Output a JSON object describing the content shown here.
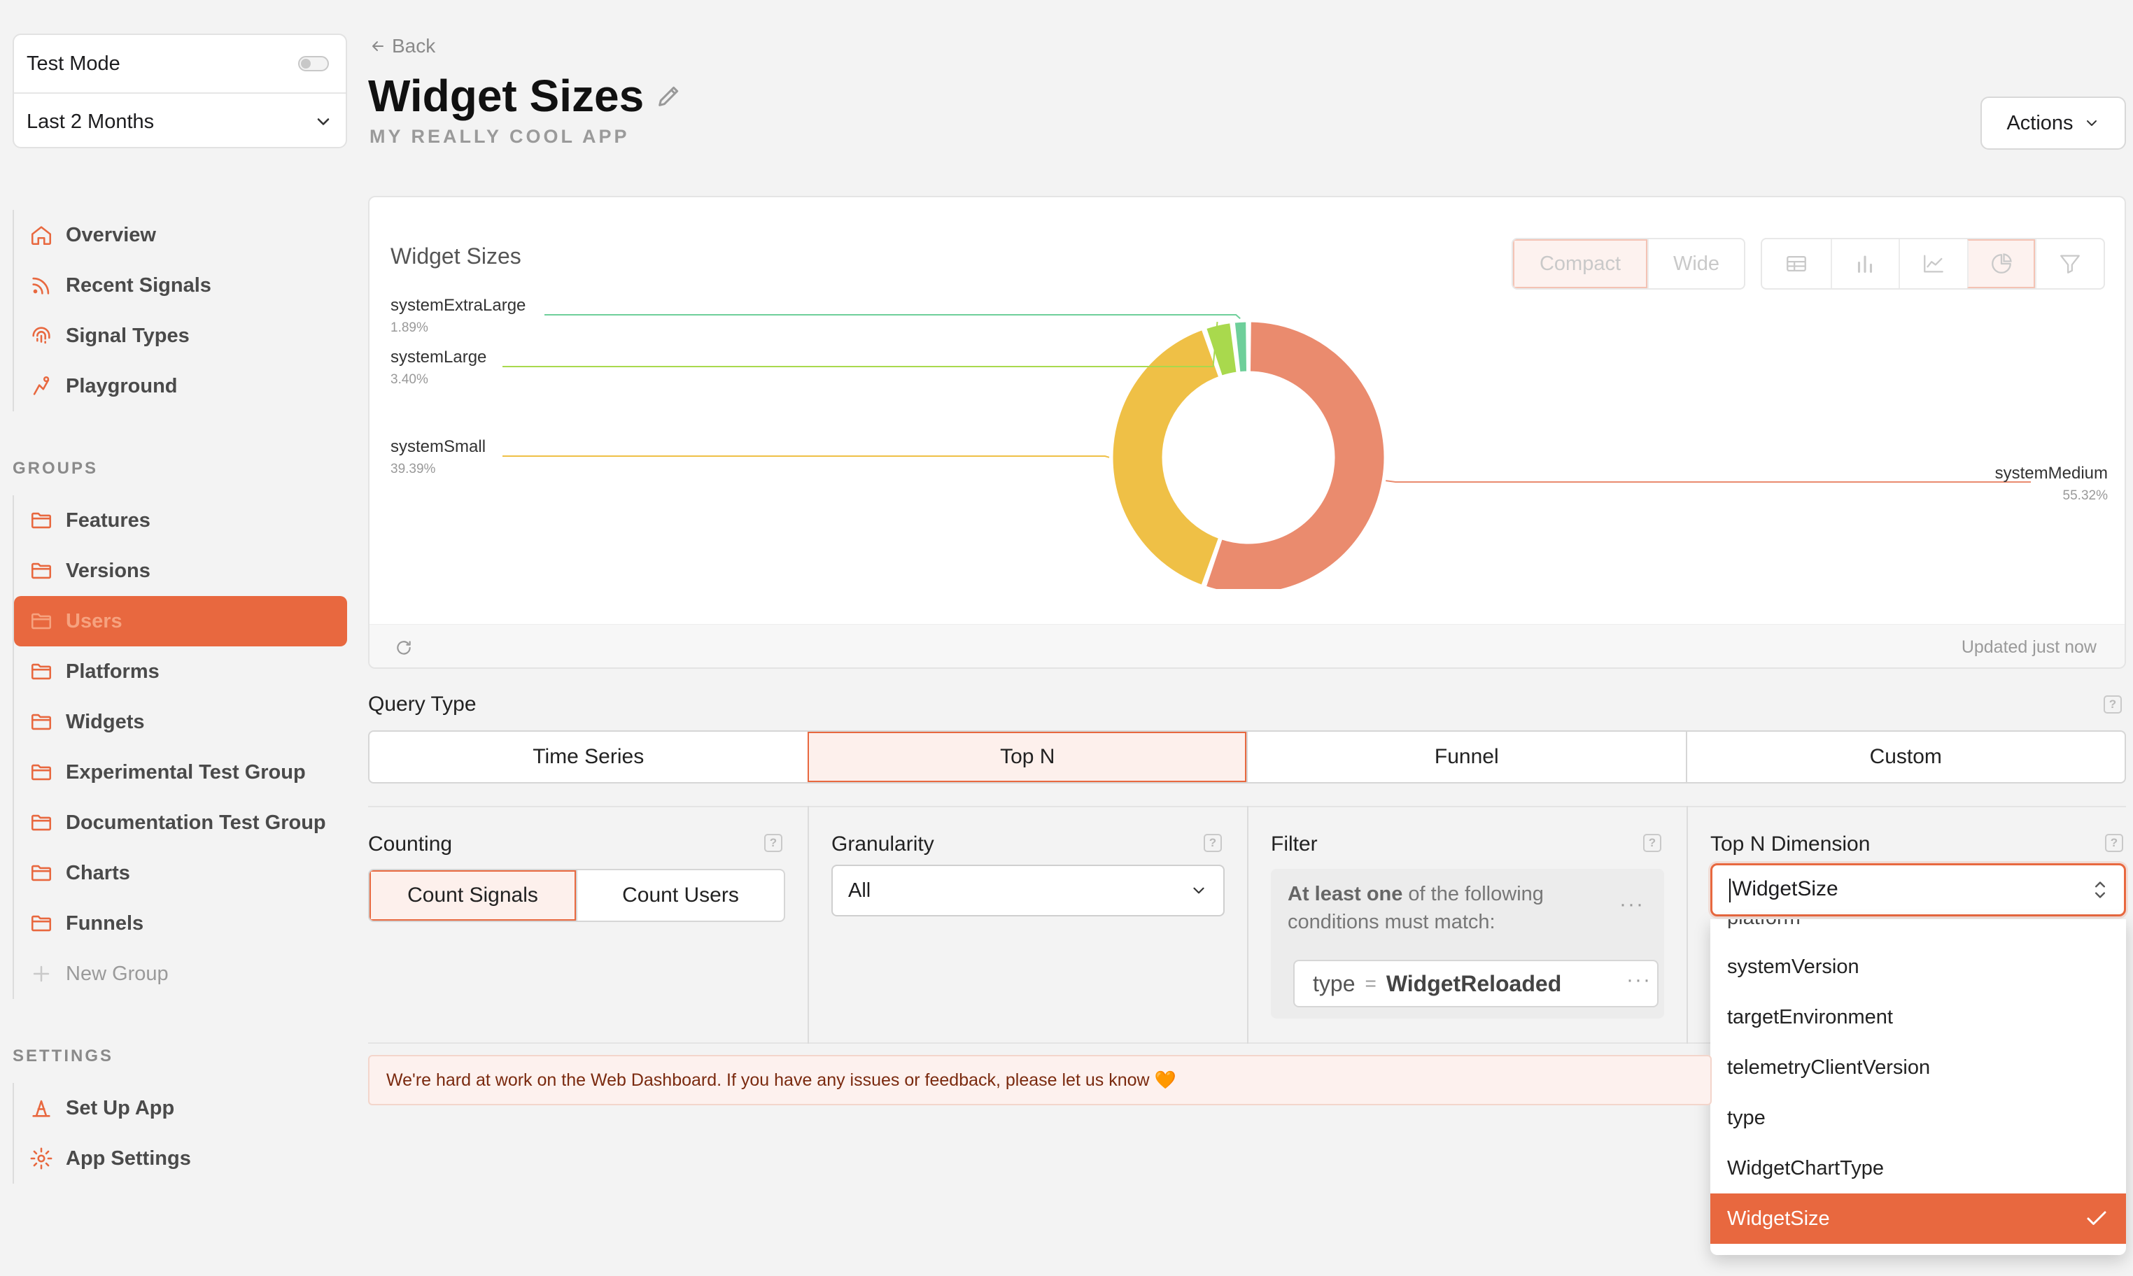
{
  "sidebar": {
    "test_mode_label": "Test Mode",
    "test_mode_on": false,
    "time_range": "Last 2 Months",
    "nav": [
      {
        "label": "Overview",
        "icon": "home-icon"
      },
      {
        "label": "Recent Signals",
        "icon": "signal-icon"
      },
      {
        "label": "Signal Types",
        "icon": "fingerprint-icon"
      },
      {
        "label": "Playground",
        "icon": "playground-icon"
      }
    ],
    "groups_label": "GROUPS",
    "groups": [
      {
        "label": "Features",
        "active": false
      },
      {
        "label": "Versions",
        "active": false
      },
      {
        "label": "Users",
        "active": true
      },
      {
        "label": "Platforms",
        "active": false
      },
      {
        "label": "Widgets",
        "active": false
      },
      {
        "label": "Experimental Test Group",
        "active": false
      },
      {
        "label": "Documentation Test Group",
        "active": false
      },
      {
        "label": "Charts",
        "active": false
      },
      {
        "label": "Funnels",
        "active": false
      }
    ],
    "new_group_label": "New Group",
    "settings_label": "SETTINGS",
    "settings": [
      {
        "label": "Set Up App",
        "icon": "wizard-icon"
      },
      {
        "label": "App Settings",
        "icon": "gear-icon"
      }
    ]
  },
  "header": {
    "back_label": "Back",
    "title": "Widget Sizes",
    "subtitle": "MY REALLY COOL APP",
    "actions_label": "Actions"
  },
  "chart_card": {
    "title": "Widget Sizes",
    "layout_options": [
      "Compact",
      "Wide"
    ],
    "selected_layout": "Compact",
    "chart_type_icons": [
      "table-icon",
      "bar-chart-icon",
      "line-chart-icon",
      "pie-chart-icon",
      "funnel-icon"
    ],
    "selected_chart_type": "pie-chart-icon",
    "updated_label": "Updated just now"
  },
  "chart_data": {
    "type": "pie",
    "donut": true,
    "title": "Widget Sizes",
    "slices": [
      {
        "label": "systemMedium",
        "value": 55.32,
        "display": "55.32%",
        "color": "#ea8b6e"
      },
      {
        "label": "systemSmall",
        "value": 39.39,
        "display": "39.39%",
        "color": "#efc046"
      },
      {
        "label": "systemLarge",
        "value": 3.4,
        "display": "3.40%",
        "color": "#a9d94d"
      },
      {
        "label": "systemExtraLarge",
        "value": 1.89,
        "display": "1.89%",
        "color": "#6ecf9a"
      }
    ]
  },
  "query": {
    "type_label": "Query Type",
    "types": [
      "Time Series",
      "Top N",
      "Funnel",
      "Custom"
    ],
    "selected_type": "Top N",
    "counting_label": "Counting",
    "counting_options": [
      "Count Signals",
      "Count Users"
    ],
    "selected_counting": "Count Signals",
    "granularity_label": "Granularity",
    "granularity_value": "All",
    "filter_label": "Filter",
    "filter_lead_bold": "At least one",
    "filter_lead_rest": " of the following conditions must match:",
    "condition_key": "type",
    "condition_op": "=",
    "condition_value": "WidgetReloaded",
    "topn_label": "Top N Dimension",
    "topn_value": "WidgetSize",
    "dropdown_partial": "platform",
    "dropdown_options": [
      "systemVersion",
      "targetEnvironment",
      "telemetryClientVersion",
      "type",
      "WidgetChartType",
      "WidgetSize"
    ],
    "dropdown_selected": "WidgetSize"
  },
  "banner": {
    "text": "We're hard at work on the Web Dashboard. If you have any issues or feedback, please let us know 🧡"
  },
  "colors": {
    "accent": "#e8683f",
    "background": "#f3f3f3"
  }
}
